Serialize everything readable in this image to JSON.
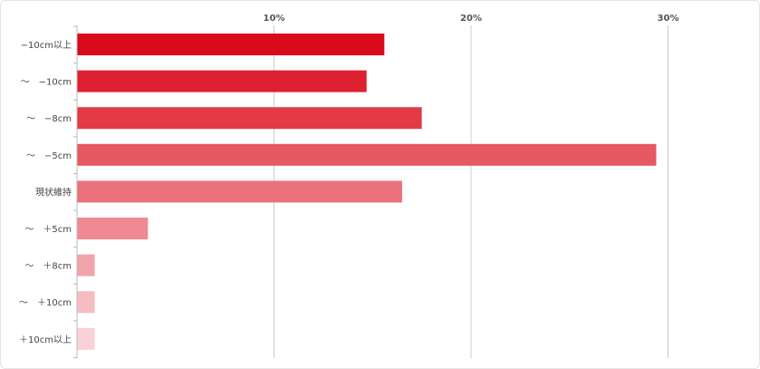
{
  "chart_data": {
    "type": "bar",
    "orientation": "horizontal",
    "categories": [
      "−10cm以上",
      "〜　−10cm",
      "〜　−8cm",
      "〜　−5cm",
      "現状維持",
      "〜　＋5cm",
      "〜　＋8cm",
      "〜　＋10cm",
      "＋10cm以上"
    ],
    "values": [
      15.6,
      14.7,
      17.5,
      29.4,
      16.5,
      3.6,
      0.9,
      0.9,
      0.9
    ],
    "xlim": [
      0,
      34
    ],
    "xticks": [
      10,
      20,
      30
    ],
    "xtick_labels": [
      "10%",
      "20%",
      "30%"
    ],
    "colors": [
      "#d90a1b",
      "#df2030",
      "#e23a47",
      "#e65862",
      "#ea717a",
      "#ef8a92",
      "#f2a4ab",
      "#f5bcc1",
      "#f8d2d5"
    ],
    "grid": true,
    "legend": "none",
    "title": "",
    "xlabel": "",
    "ylabel": ""
  }
}
